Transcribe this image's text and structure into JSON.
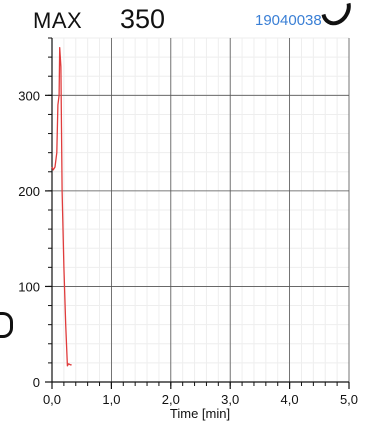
{
  "header": {
    "max_label": "MAX",
    "max_value": "350",
    "device_id": "19040038"
  },
  "chart_data": {
    "type": "line",
    "title": "",
    "xlabel": "Time [min]",
    "ylabel": "",
    "xlim": [
      0,
      5
    ],
    "ylim": [
      0,
      360
    ],
    "x_ticks": [
      0,
      1,
      2,
      3,
      4,
      5
    ],
    "x_tick_labels": [
      "0,0",
      "1,0",
      "2,0",
      "3,0",
      "4,0",
      "5,0"
    ],
    "y_ticks": [
      0,
      100,
      200,
      300
    ],
    "y_tick_labels": [
      "0",
      "100",
      "200",
      "300"
    ],
    "grid": true,
    "series": [
      {
        "color": "#e03c3c",
        "x": [
          0.0,
          0.02,
          0.05,
          0.08,
          0.1,
          0.12,
          0.13,
          0.15,
          0.17,
          0.2,
          0.23,
          0.26,
          0.28,
          0.31,
          0.33
        ],
        "y": [
          225,
          222,
          225,
          240,
          290,
          300,
          350,
          330,
          200,
          120,
          60,
          17,
          19,
          18,
          18
        ]
      }
    ]
  }
}
